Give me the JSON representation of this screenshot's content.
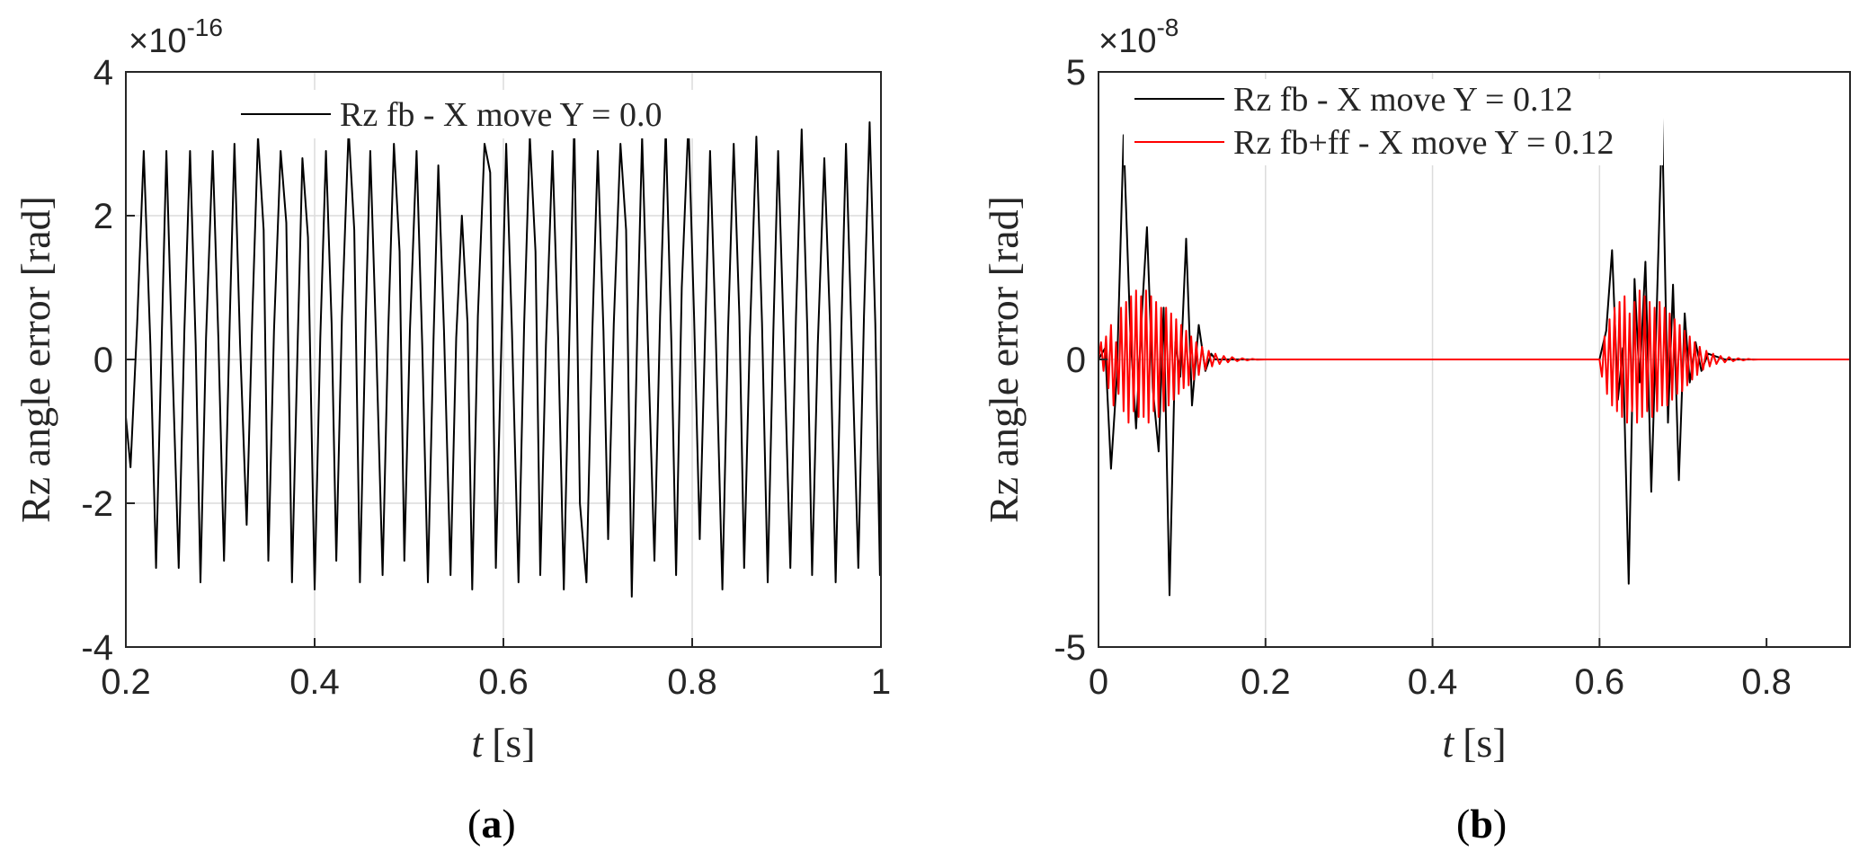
{
  "chart_data": [
    {
      "type": "line",
      "panel_label": "a",
      "exponent": "-16",
      "xlabel_var": "t",
      "xlabel_unit": "[s]",
      "ylabel": "Rz angle error [rad]",
      "xlim": [
        0.2,
        1.0
      ],
      "ylim": [
        -4,
        4
      ],
      "xticks": [
        0.2,
        0.4,
        0.6,
        0.8,
        1
      ],
      "xtick_labels": [
        "0.2",
        "0.4",
        "0.6",
        "0.8",
        "1"
      ],
      "yticks": [
        -4,
        -2,
        0,
        2,
        4
      ],
      "ytick_labels": [
        "-4",
        "-2",
        "0",
        "2",
        "4"
      ],
      "grid": true,
      "legend_position": "top-center",
      "series": [
        {
          "name": "Rz fb - X move Y = 0.0",
          "color": "#000000",
          "x": [
            0.2,
            0.205,
            0.212,
            0.219,
            0.226,
            0.232,
            0.238,
            0.243,
            0.249,
            0.256,
            0.262,
            0.268,
            0.274,
            0.279,
            0.285,
            0.292,
            0.298,
            0.304,
            0.31,
            0.315,
            0.321,
            0.328,
            0.334,
            0.34,
            0.346,
            0.351,
            0.357,
            0.364,
            0.37,
            0.376,
            0.382,
            0.387,
            0.393,
            0.4,
            0.406,
            0.412,
            0.418,
            0.423,
            0.429,
            0.436,
            0.442,
            0.448,
            0.454,
            0.459,
            0.465,
            0.472,
            0.478,
            0.484,
            0.49,
            0.495,
            0.501,
            0.508,
            0.514,
            0.52,
            0.526,
            0.531,
            0.537,
            0.544,
            0.55,
            0.556,
            0.562,
            0.567,
            0.573,
            0.58,
            0.586,
            0.592,
            0.598,
            0.603,
            0.609,
            0.616,
            0.622,
            0.628,
            0.634,
            0.639,
            0.645,
            0.652,
            0.658,
            0.664,
            0.67,
            0.675,
            0.681,
            0.688,
            0.694,
            0.7,
            0.706,
            0.711,
            0.717,
            0.724,
            0.73,
            0.736,
            0.742,
            0.747,
            0.753,
            0.76,
            0.766,
            0.772,
            0.778,
            0.783,
            0.789,
            0.796,
            0.802,
            0.808,
            0.814,
            0.819,
            0.825,
            0.832,
            0.838,
            0.844,
            0.85,
            0.855,
            0.861,
            0.868,
            0.874,
            0.88,
            0.886,
            0.891,
            0.897,
            0.904,
            0.91,
            0.916,
            0.922,
            0.927,
            0.933,
            0.94,
            0.946,
            0.952,
            0.958,
            0.963,
            0.969,
            0.976,
            0.982,
            0.988,
            0.994,
            0.999,
            1.0
          ],
          "values": [
            -0.8,
            -1.5,
            0.5,
            2.9,
            0.2,
            -2.9,
            0.3,
            2.9,
            0.1,
            -2.9,
            0.4,
            2.9,
            0.2,
            -3.1,
            0.3,
            2.9,
            0.3,
            -2.8,
            0.5,
            3.0,
            0.2,
            -2.3,
            0.6,
            3.1,
            1.8,
            -2.8,
            0.4,
            2.9,
            1.9,
            -3.1,
            0.2,
            2.8,
            1.7,
            -3.2,
            0.3,
            2.9,
            0.5,
            -2.8,
            0.6,
            3.2,
            1.8,
            -3.1,
            0.5,
            2.9,
            0.3,
            -3.0,
            0.4,
            3.0,
            1.5,
            -2.8,
            0.4,
            2.9,
            0.2,
            -3.1,
            0.3,
            2.7,
            0.4,
            -3.0,
            0.3,
            2.0,
            0.5,
            -3.2,
            0.6,
            3.0,
            2.6,
            -2.9,
            0.3,
            3.0,
            0.4,
            -3.1,
            0.5,
            3.1,
            1.5,
            -3.0,
            0.2,
            2.9,
            0.3,
            -3.2,
            0.4,
            3.3,
            -2.0,
            -3.1,
            0.3,
            2.9,
            0.4,
            -2.5,
            0.5,
            3.0,
            1.8,
            -3.3,
            0.5,
            3.1,
            0.3,
            -2.8,
            0.6,
            3.2,
            0.2,
            -3.0,
            1.0,
            3.3,
            0.6,
            -2.5,
            0.5,
            2.9,
            0.3,
            -3.2,
            0.4,
            3.0,
            0.6,
            -2.9,
            0.3,
            3.1,
            0.5,
            -3.1,
            0.4,
            2.9,
            0.3,
            -2.9,
            0.6,
            3.2,
            0.4,
            -3.0,
            0.2,
            2.8,
            0.5,
            -3.1,
            0.4,
            3.0,
            0.3,
            -2.9,
            0.6,
            3.3,
            0.5,
            -3.0,
            0.6
          ]
        }
      ]
    },
    {
      "type": "line",
      "panel_label": "b",
      "exponent": "-8",
      "xlabel_var": "t",
      "xlabel_unit": "[s]",
      "ylabel": "Rz angle error [rad]",
      "xlim": [
        0,
        0.9
      ],
      "ylim": [
        -5,
        5
      ],
      "xticks": [
        0,
        0.2,
        0.4,
        0.6,
        0.8
      ],
      "xtick_labels": [
        "0",
        "0.2",
        "0.4",
        "0.6",
        "0.8"
      ],
      "yticks": [
        -5,
        0,
        5
      ],
      "ytick_labels": [
        "-5",
        "0",
        "5"
      ],
      "grid": true,
      "legend_position": "top-left",
      "series": [
        {
          "name": "Rz fb - X move Y = 0.12",
          "color": "#000000",
          "x": [
            0,
            0.008,
            0.015,
            0.022,
            0.03,
            0.038,
            0.045,
            0.052,
            0.058,
            0.065,
            0.072,
            0.078,
            0.085,
            0.092,
            0.098,
            0.105,
            0.112,
            0.12,
            0.128,
            0.135,
            0.14,
            0.6,
            0.608,
            0.615,
            0.622,
            0.628,
            0.635,
            0.642,
            0.648,
            0.655,
            0.662,
            0.668,
            0.675,
            0.682,
            0.688,
            0.695,
            0.702,
            0.708,
            0.715,
            0.722,
            0.73,
            0.74,
            0.75,
            0.9
          ],
          "values": [
            0,
            0.2,
            -1.9,
            -0.3,
            3.9,
            0.5,
            -1.2,
            0.8,
            2.3,
            -0.5,
            -1.6,
            0.9,
            -4.1,
            0.3,
            -0.3,
            2.1,
            -0.8,
            0.6,
            -0.2,
            0.1,
            0,
            0,
            0.5,
            1.9,
            -0.7,
            0.2,
            -3.9,
            1.4,
            -0.4,
            1.7,
            -2.3,
            0.6,
            4.2,
            -1.1,
            1.3,
            -2.1,
            0.8,
            -0.4,
            0.3,
            -0.2,
            0.1,
            0.05,
            0,
            0
          ]
        },
        {
          "name": "Rz fb+ff - X move Y = 0.12",
          "color": "#ff0000",
          "x": [
            0,
            0.003,
            0.006,
            0.009,
            0.012,
            0.015,
            0.018,
            0.021,
            0.024,
            0.027,
            0.03,
            0.033,
            0.036,
            0.039,
            0.042,
            0.045,
            0.048,
            0.051,
            0.054,
            0.057,
            0.06,
            0.063,
            0.066,
            0.069,
            0.072,
            0.075,
            0.078,
            0.081,
            0.084,
            0.087,
            0.09,
            0.093,
            0.096,
            0.099,
            0.102,
            0.105,
            0.108,
            0.111,
            0.114,
            0.117,
            0.12,
            0.124,
            0.128,
            0.132,
            0.136,
            0.14,
            0.145,
            0.15,
            0.155,
            0.16,
            0.166,
            0.172,
            0.178,
            0.184,
            0.19,
            0.2,
            0.6,
            0.603,
            0.606,
            0.609,
            0.612,
            0.615,
            0.618,
            0.621,
            0.624,
            0.627,
            0.63,
            0.633,
            0.636,
            0.639,
            0.642,
            0.645,
            0.648,
            0.651,
            0.654,
            0.657,
            0.66,
            0.663,
            0.666,
            0.669,
            0.672,
            0.675,
            0.678,
            0.681,
            0.684,
            0.687,
            0.69,
            0.693,
            0.696,
            0.699,
            0.702,
            0.705,
            0.708,
            0.711,
            0.714,
            0.717,
            0.72,
            0.724,
            0.728,
            0.732,
            0.736,
            0.74,
            0.745,
            0.75,
            0.755,
            0.76,
            0.766,
            0.772,
            0.778,
            0.784,
            0.79,
            0.8,
            0.9
          ],
          "values": [
            0,
            0.3,
            -0.2,
            0.4,
            -0.5,
            0.6,
            -0.8,
            0.3,
            -0.6,
            0.9,
            -0.9,
            1.0,
            -1.1,
            1.1,
            -0.9,
            1.2,
            -1.0,
            1.1,
            -1.0,
            1.2,
            -1.1,
            1.1,
            -0.9,
            1.0,
            -1.0,
            0.9,
            -0.9,
            0.9,
            -0.8,
            0.8,
            -0.7,
            0.7,
            -0.6,
            0.6,
            -0.5,
            0.5,
            -0.45,
            0.4,
            -0.35,
            0.3,
            -0.27,
            0.22,
            -0.18,
            0.15,
            -0.12,
            0.1,
            -0.08,
            0.06,
            -0.05,
            0.04,
            -0.03,
            0.02,
            -0.015,
            0.01,
            -0.005,
            0,
            0,
            -0.3,
            0.4,
            -0.6,
            0.7,
            -0.8,
            0.9,
            -0.9,
            1.0,
            -1.0,
            1.1,
            -1.1,
            0.8,
            -0.9,
            1.0,
            -1.1,
            1.2,
            -1.0,
            1.1,
            -0.9,
            1.0,
            -1.0,
            0.9,
            -0.9,
            1.0,
            -0.8,
            0.9,
            -0.8,
            0.8,
            -0.7,
            0.7,
            -0.6,
            0.6,
            -0.55,
            0.5,
            -0.45,
            0.4,
            -0.35,
            0.3,
            -0.27,
            0.22,
            -0.18,
            0.15,
            -0.12,
            0.1,
            -0.08,
            0.06,
            -0.05,
            0.04,
            -0.03,
            0.02,
            -0.015,
            0.01,
            -0.005,
            0,
            0,
            0
          ]
        }
      ]
    }
  ]
}
